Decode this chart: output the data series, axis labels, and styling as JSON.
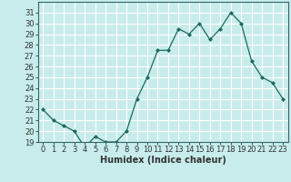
{
  "x": [
    0,
    1,
    2,
    3,
    4,
    5,
    6,
    7,
    8,
    9,
    10,
    11,
    12,
    13,
    14,
    15,
    16,
    17,
    18,
    19,
    20,
    21,
    22,
    23
  ],
  "y": [
    22.0,
    21.0,
    20.5,
    20.0,
    18.5,
    19.5,
    19.0,
    19.0,
    20.0,
    23.0,
    25.0,
    27.5,
    27.5,
    29.5,
    29.0,
    30.0,
    28.5,
    29.5,
    31.0,
    30.0,
    26.5,
    25.0,
    24.5,
    23.0
  ],
  "line_color": "#1a6b5a",
  "marker": "D",
  "marker_size": 2.0,
  "bg_color": "#c8ecec",
  "grid_color": "#ffffff",
  "xlabel": "Humidex (Indice chaleur)",
  "xlabel_fontsize": 7,
  "tick_fontsize": 6,
  "ylim": [
    19,
    32
  ],
  "xlim": [
    -0.5,
    23.5
  ],
  "yticks": [
    19,
    20,
    21,
    22,
    23,
    24,
    25,
    26,
    27,
    28,
    29,
    30,
    31
  ],
  "xticks": [
    0,
    1,
    2,
    3,
    4,
    5,
    6,
    7,
    8,
    9,
    10,
    11,
    12,
    13,
    14,
    15,
    16,
    17,
    18,
    19,
    20,
    21,
    22,
    23
  ],
  "tick_color": "#333333",
  "spine_color": "#336666"
}
